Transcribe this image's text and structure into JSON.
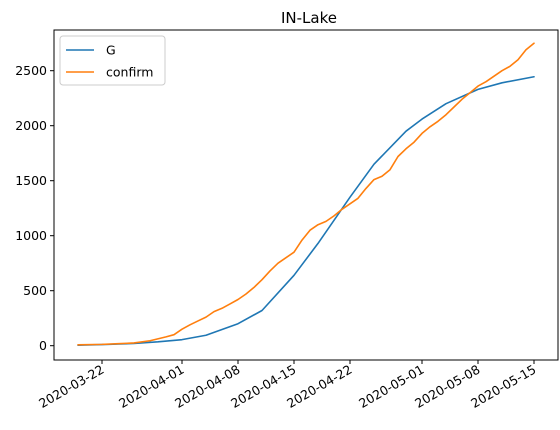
{
  "chart_data": {
    "type": "line",
    "title": "IN-Lake",
    "xlabel": "",
    "ylabel": "",
    "x_start": "2020-03-19",
    "x_end": "2020-05-15",
    "xlim": [
      "2020-03-16",
      "2020-05-18"
    ],
    "ylim": [
      -130,
      2870
    ],
    "x_ticks": [
      "2020-03-22",
      "2020-04-01",
      "2020-04-08",
      "2020-04-15",
      "2020-04-22",
      "2020-05-01",
      "2020-05-08",
      "2020-05-15"
    ],
    "y_ticks": [
      0,
      500,
      1000,
      1500,
      2000,
      2500
    ],
    "grid": false,
    "legend_position": "upper-left",
    "series": [
      {
        "name": "G",
        "color": "#1f77b4",
        "points": [
          [
            "2020-03-19",
            5
          ],
          [
            "2020-03-22",
            10
          ],
          [
            "2020-03-26",
            20
          ],
          [
            "2020-03-29",
            35
          ],
          [
            "2020-04-01",
            55
          ],
          [
            "2020-04-04",
            95
          ],
          [
            "2020-04-08",
            200
          ],
          [
            "2020-04-11",
            320
          ],
          [
            "2020-04-15",
            640
          ],
          [
            "2020-04-18",
            930
          ],
          [
            "2020-04-22",
            1350
          ],
          [
            "2020-04-25",
            1650
          ],
          [
            "2020-04-29",
            1950
          ],
          [
            "2020-05-01",
            2060
          ],
          [
            "2020-05-04",
            2200
          ],
          [
            "2020-05-08",
            2330
          ],
          [
            "2020-05-11",
            2390
          ],
          [
            "2020-05-15",
            2445
          ]
        ]
      },
      {
        "name": "confirm",
        "color": "#ff7f0e",
        "points": [
          [
            "2020-03-19",
            8
          ],
          [
            "2020-03-22",
            12
          ],
          [
            "2020-03-24",
            18
          ],
          [
            "2020-03-26",
            25
          ],
          [
            "2020-03-28",
            45
          ],
          [
            "2020-03-30",
            80
          ],
          [
            "2020-03-31",
            100
          ],
          [
            "2020-04-01",
            150
          ],
          [
            "2020-04-02",
            190
          ],
          [
            "2020-04-03",
            225
          ],
          [
            "2020-04-04",
            260
          ],
          [
            "2020-04-05",
            310
          ],
          [
            "2020-04-06",
            340
          ],
          [
            "2020-04-07",
            380
          ],
          [
            "2020-04-08",
            420
          ],
          [
            "2020-04-09",
            470
          ],
          [
            "2020-04-10",
            530
          ],
          [
            "2020-04-11",
            600
          ],
          [
            "2020-04-12",
            680
          ],
          [
            "2020-04-13",
            750
          ],
          [
            "2020-04-14",
            800
          ],
          [
            "2020-04-15",
            850
          ],
          [
            "2020-04-16",
            960
          ],
          [
            "2020-04-17",
            1050
          ],
          [
            "2020-04-18",
            1100
          ],
          [
            "2020-04-19",
            1130
          ],
          [
            "2020-04-20",
            1180
          ],
          [
            "2020-04-21",
            1240
          ],
          [
            "2020-04-22",
            1290
          ],
          [
            "2020-04-23",
            1340
          ],
          [
            "2020-04-24",
            1430
          ],
          [
            "2020-04-25",
            1510
          ],
          [
            "2020-04-26",
            1540
          ],
          [
            "2020-04-27",
            1600
          ],
          [
            "2020-04-28",
            1720
          ],
          [
            "2020-04-29",
            1790
          ],
          [
            "2020-04-30",
            1850
          ],
          [
            "2020-05-01",
            1930
          ],
          [
            "2020-05-02",
            1990
          ],
          [
            "2020-05-03",
            2040
          ],
          [
            "2020-05-04",
            2100
          ],
          [
            "2020-05-05",
            2170
          ],
          [
            "2020-05-06",
            2240
          ],
          [
            "2020-05-07",
            2300
          ],
          [
            "2020-05-08",
            2360
          ],
          [
            "2020-05-09",
            2400
          ],
          [
            "2020-05-10",
            2450
          ],
          [
            "2020-05-11",
            2500
          ],
          [
            "2020-05-12",
            2540
          ],
          [
            "2020-05-13",
            2600
          ],
          [
            "2020-05-14",
            2690
          ],
          [
            "2020-05-15",
            2750
          ]
        ]
      }
    ]
  }
}
